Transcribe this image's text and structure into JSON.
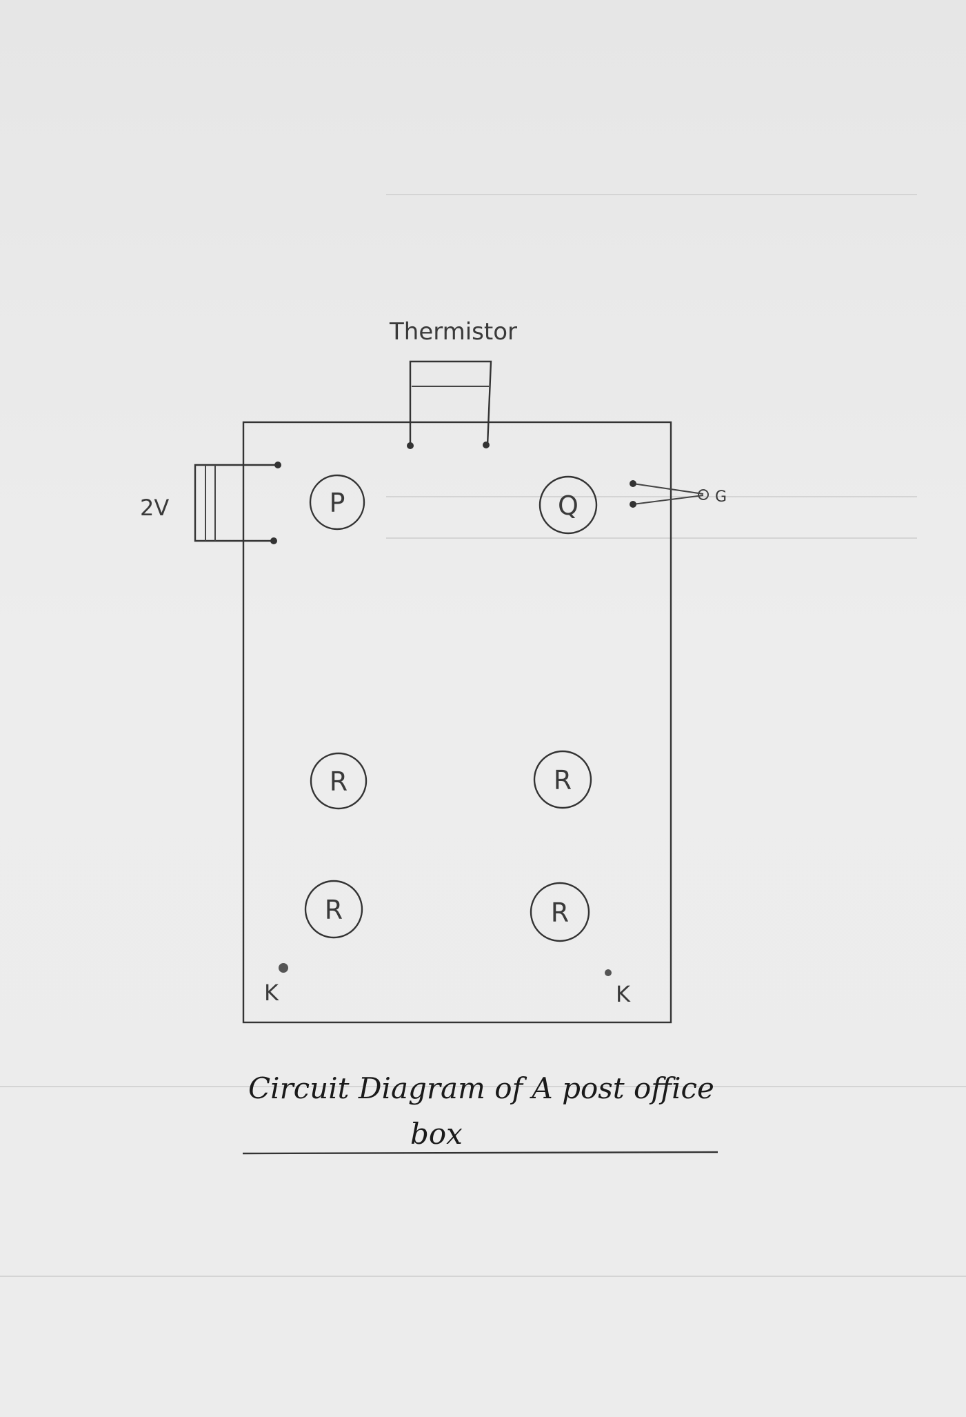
{
  "diagram": {
    "thermistor_label": "Thermistor",
    "battery_label": "2V",
    "galvanometer_label": "G",
    "resistors": {
      "p": "P",
      "q": "Q",
      "r1": "R",
      "r2": "R",
      "r3": "R",
      "r4": "R"
    },
    "keys": {
      "left": "K",
      "right": "K"
    },
    "caption_line1": "Circuit Diagram of A post office",
    "caption_line2": "box"
  }
}
